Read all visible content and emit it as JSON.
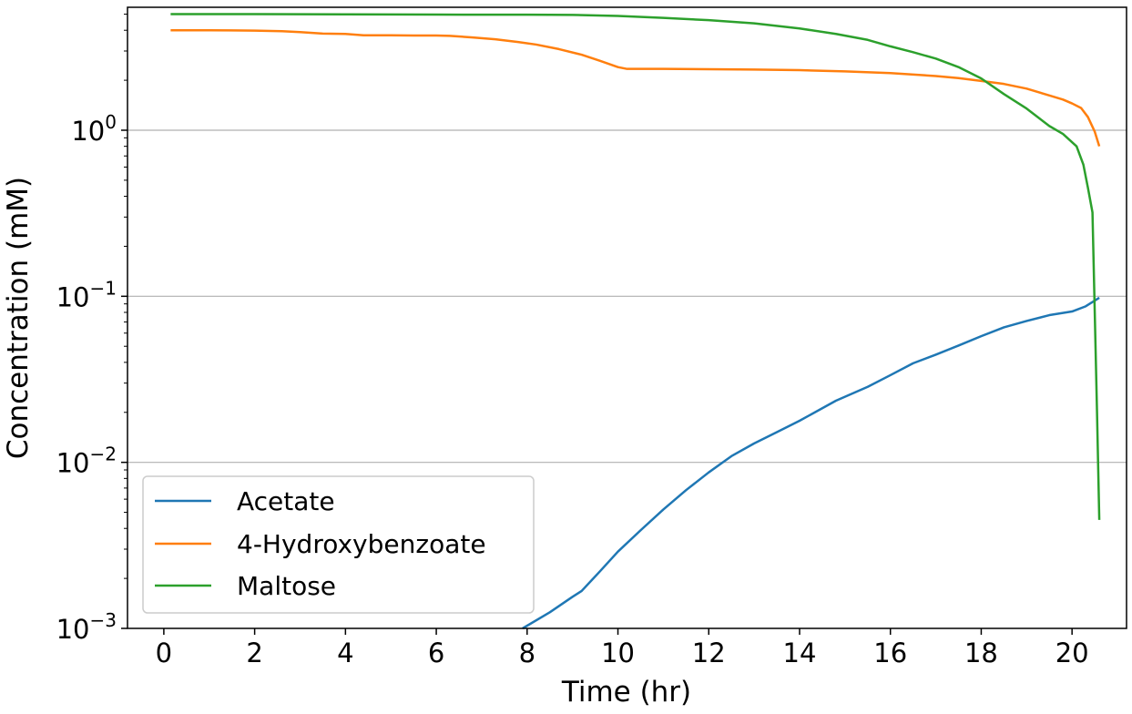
{
  "chart_data": {
    "type": "line",
    "title": "",
    "xlabel": "Time (hr)",
    "ylabel": "Concentration (mM)",
    "xlim": [
      -0.8,
      21.2
    ],
    "ylim": [
      0.001,
      5.5
    ],
    "yscale": "log",
    "grid": "horizontal major lines",
    "legend_position": "lower-left",
    "x_ticks": [
      0,
      2,
      4,
      6,
      8,
      10,
      12,
      14,
      16,
      18,
      20
    ],
    "x_tick_labels": [
      "0",
      "2",
      "4",
      "6",
      "8",
      "10",
      "12",
      "14",
      "16",
      "18",
      "20"
    ],
    "y_ticks": [
      0.001,
      0.01,
      0.1,
      1
    ],
    "y_tick_labels": [
      {
        "base": "10",
        "exp": "−3"
      },
      {
        "base": "10",
        "exp": "−2"
      },
      {
        "base": "10",
        "exp": "−1"
      },
      {
        "base": "10",
        "exp": "0"
      }
    ],
    "series": [
      {
        "name": "Acetate",
        "color": "#1f77b4",
        "points": [
          [
            7.9,
            0.001
          ],
          [
            8.5,
            0.00125
          ],
          [
            9.0,
            0.00155
          ],
          [
            9.2,
            0.00168
          ],
          [
            9.6,
            0.0022
          ],
          [
            10.0,
            0.0029
          ],
          [
            10.5,
            0.0039
          ],
          [
            11.0,
            0.0052
          ],
          [
            11.5,
            0.0068
          ],
          [
            12.0,
            0.0087
          ],
          [
            12.5,
            0.0109
          ],
          [
            13.0,
            0.013
          ],
          [
            13.5,
            0.0152
          ],
          [
            14.0,
            0.0178
          ],
          [
            14.8,
            0.0235
          ],
          [
            15.5,
            0.0285
          ],
          [
            16.0,
            0.0335
          ],
          [
            16.5,
            0.0395
          ],
          [
            17.0,
            0.0445
          ],
          [
            17.5,
            0.0505
          ],
          [
            18.0,
            0.0575
          ],
          [
            18.5,
            0.065
          ],
          [
            19.0,
            0.071
          ],
          [
            19.5,
            0.077
          ],
          [
            20.0,
            0.081
          ],
          [
            20.3,
            0.087
          ],
          [
            20.6,
            0.098
          ]
        ]
      },
      {
        "name": "4-Hydroxybenzoate",
        "color": "#ff7f0e",
        "points": [
          [
            0.15,
            4.0
          ],
          [
            1.0,
            4.0
          ],
          [
            2.0,
            3.98
          ],
          [
            2.6,
            3.95
          ],
          [
            3.0,
            3.9
          ],
          [
            3.5,
            3.82
          ],
          [
            4.0,
            3.8
          ],
          [
            4.4,
            3.73
          ],
          [
            5.0,
            3.73
          ],
          [
            5.5,
            3.72
          ],
          [
            6.0,
            3.72
          ],
          [
            6.3,
            3.7
          ],
          [
            6.8,
            3.62
          ],
          [
            7.3,
            3.53
          ],
          [
            7.8,
            3.4
          ],
          [
            8.2,
            3.28
          ],
          [
            8.7,
            3.08
          ],
          [
            9.2,
            2.85
          ],
          [
            9.6,
            2.62
          ],
          [
            10.0,
            2.4
          ],
          [
            10.2,
            2.34
          ],
          [
            11.0,
            2.34
          ],
          [
            12.0,
            2.33
          ],
          [
            13.0,
            2.32
          ],
          [
            14.0,
            2.3
          ],
          [
            15.0,
            2.26
          ],
          [
            16.0,
            2.21
          ],
          [
            17.0,
            2.12
          ],
          [
            17.5,
            2.06
          ],
          [
            18.0,
            1.98
          ],
          [
            18.5,
            1.9
          ],
          [
            19.0,
            1.78
          ],
          [
            19.5,
            1.62
          ],
          [
            19.8,
            1.53
          ],
          [
            20.0,
            1.45
          ],
          [
            20.2,
            1.36
          ],
          [
            20.35,
            1.2
          ],
          [
            20.5,
            0.98
          ],
          [
            20.6,
            0.8
          ]
        ]
      },
      {
        "name": "Maltose",
        "color": "#2ca02c",
        "points": [
          [
            0.15,
            5.0
          ],
          [
            2.0,
            5.0
          ],
          [
            4.0,
            4.99
          ],
          [
            6.0,
            4.97
          ],
          [
            8.0,
            4.96
          ],
          [
            9.0,
            4.95
          ],
          [
            10.0,
            4.88
          ],
          [
            11.0,
            4.75
          ],
          [
            12.0,
            4.6
          ],
          [
            13.0,
            4.4
          ],
          [
            14.0,
            4.1
          ],
          [
            14.8,
            3.8
          ],
          [
            15.5,
            3.5
          ],
          [
            16.0,
            3.2
          ],
          [
            16.5,
            2.95
          ],
          [
            17.0,
            2.7
          ],
          [
            17.5,
            2.4
          ],
          [
            18.0,
            2.05
          ],
          [
            18.5,
            1.65
          ],
          [
            19.0,
            1.35
          ],
          [
            19.5,
            1.06
          ],
          [
            19.8,
            0.95
          ],
          [
            20.1,
            0.8
          ],
          [
            20.25,
            0.62
          ],
          [
            20.35,
            0.45
          ],
          [
            20.45,
            0.32
          ],
          [
            20.5,
            0.08
          ],
          [
            20.55,
            0.02
          ],
          [
            20.6,
            0.0045
          ]
        ]
      }
    ]
  }
}
